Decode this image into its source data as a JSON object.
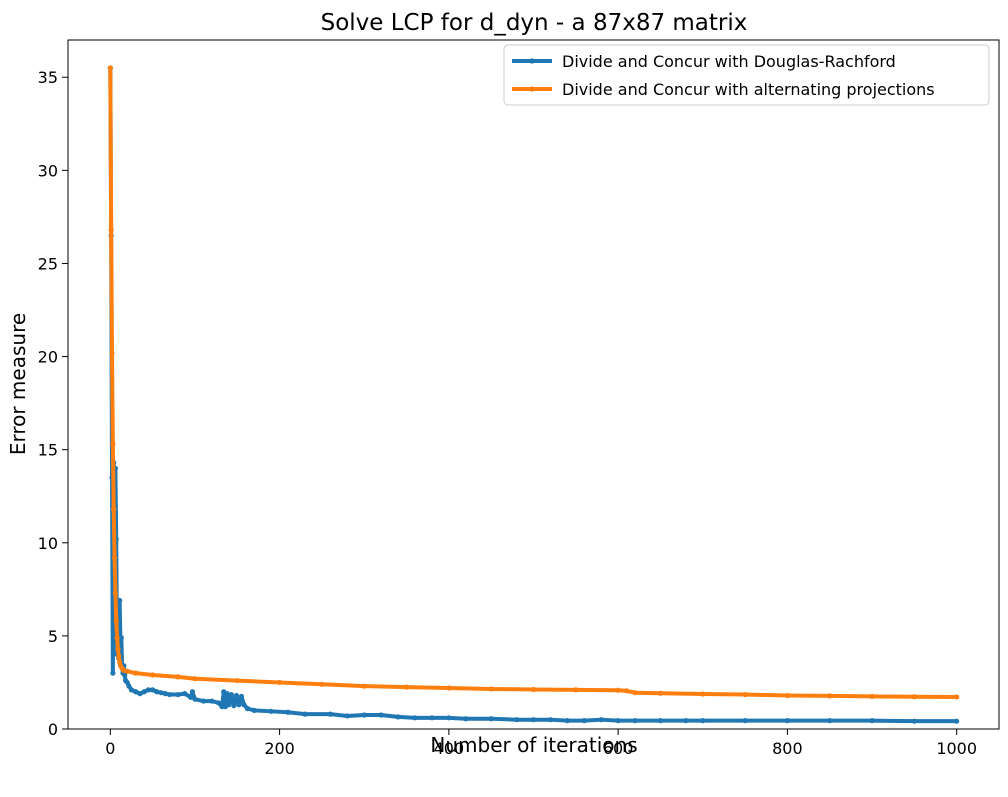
{
  "chart_data": {
    "type": "line",
    "title": "Solve LCP for d_dyn - a 87x87 matrix",
    "xlabel": "Number of iterations",
    "ylabel": "Error measure",
    "xlim": [
      -50,
      1050
    ],
    "ylim": [
      0,
      37
    ],
    "xticks": [
      0,
      200,
      400,
      600,
      800,
      1000
    ],
    "yticks": [
      0,
      5,
      10,
      15,
      20,
      25,
      30,
      35
    ],
    "grid": false,
    "legend_position": "top-right",
    "series": [
      {
        "name": "Divide and Concur with Douglas-Rachford",
        "color": "#1f77b4",
        "points": [
          [
            0,
            35.5
          ],
          [
            1,
            26.5
          ],
          [
            2,
            13.5
          ],
          [
            3,
            3.0
          ],
          [
            4,
            14.3
          ],
          [
            5,
            7.0
          ],
          [
            6,
            14.0
          ],
          [
            7,
            10.2
          ],
          [
            8,
            4.0
          ],
          [
            9,
            6.8
          ],
          [
            10,
            3.8
          ],
          [
            11,
            6.9
          ],
          [
            12,
            4.6
          ],
          [
            13,
            4.9
          ],
          [
            14,
            3.3
          ],
          [
            15,
            3.0
          ],
          [
            16,
            3.4
          ],
          [
            17,
            2.9
          ],
          [
            18,
            2.6
          ],
          [
            20,
            2.5
          ],
          [
            22,
            2.3
          ],
          [
            25,
            2.1
          ],
          [
            30,
            2.0
          ],
          [
            35,
            1.9
          ],
          [
            40,
            2.0
          ],
          [
            45,
            2.1
          ],
          [
            50,
            2.1
          ],
          [
            55,
            2.0
          ],
          [
            60,
            1.95
          ],
          [
            65,
            1.9
          ],
          [
            70,
            1.85
          ],
          [
            80,
            1.85
          ],
          [
            88,
            1.9
          ],
          [
            95,
            1.7
          ],
          [
            97,
            2.0
          ],
          [
            100,
            1.6
          ],
          [
            110,
            1.5
          ],
          [
            120,
            1.5
          ],
          [
            128,
            1.4
          ],
          [
            132,
            1.2
          ],
          [
            134,
            2.0
          ],
          [
            136,
            1.2
          ],
          [
            138,
            1.9
          ],
          [
            140,
            1.3
          ],
          [
            143,
            1.85
          ],
          [
            146,
            1.25
          ],
          [
            149,
            1.8
          ],
          [
            152,
            1.3
          ],
          [
            155,
            1.75
          ],
          [
            158,
            1.3
          ],
          [
            162,
            1.1
          ],
          [
            170,
            1.0
          ],
          [
            190,
            0.95
          ],
          [
            210,
            0.9
          ],
          [
            230,
            0.8
          ],
          [
            260,
            0.8
          ],
          [
            280,
            0.7
          ],
          [
            300,
            0.75
          ],
          [
            320,
            0.75
          ],
          [
            340,
            0.65
          ],
          [
            360,
            0.6
          ],
          [
            380,
            0.6
          ],
          [
            400,
            0.6
          ],
          [
            420,
            0.55
          ],
          [
            450,
            0.55
          ],
          [
            480,
            0.5
          ],
          [
            500,
            0.5
          ],
          [
            520,
            0.5
          ],
          [
            540,
            0.45
          ],
          [
            560,
            0.45
          ],
          [
            580,
            0.5
          ],
          [
            600,
            0.45
          ],
          [
            620,
            0.45
          ],
          [
            650,
            0.45
          ],
          [
            680,
            0.45
          ],
          [
            700,
            0.45
          ],
          [
            750,
            0.45
          ],
          [
            800,
            0.45
          ],
          [
            850,
            0.45
          ],
          [
            900,
            0.45
          ],
          [
            950,
            0.42
          ],
          [
            1000,
            0.42
          ]
        ]
      },
      {
        "name": "Divide and Concur with alternating projections",
        "color": "#ff7f0e",
        "points": [
          [
            0,
            35.5
          ],
          [
            1,
            26.8
          ],
          [
            2,
            20.2
          ],
          [
            3,
            15.3
          ],
          [
            4,
            11.8
          ],
          [
            5,
            9.2
          ],
          [
            6,
            7.3
          ],
          [
            7,
            5.8
          ],
          [
            8,
            4.9
          ],
          [
            9,
            4.3
          ],
          [
            10,
            3.9
          ],
          [
            11,
            3.6
          ],
          [
            12,
            3.4
          ],
          [
            14,
            3.25
          ],
          [
            16,
            3.15
          ],
          [
            20,
            3.1
          ],
          [
            30,
            3.0
          ],
          [
            50,
            2.9
          ],
          [
            80,
            2.8
          ],
          [
            100,
            2.7
          ],
          [
            150,
            2.6
          ],
          [
            200,
            2.5
          ],
          [
            250,
            2.4
          ],
          [
            300,
            2.3
          ],
          [
            350,
            2.25
          ],
          [
            400,
            2.2
          ],
          [
            450,
            2.15
          ],
          [
            500,
            2.12
          ],
          [
            550,
            2.1
          ],
          [
            600,
            2.08
          ],
          [
            610,
            2.05
          ],
          [
            620,
            1.95
          ],
          [
            650,
            1.92
          ],
          [
            700,
            1.88
          ],
          [
            750,
            1.85
          ],
          [
            800,
            1.8
          ],
          [
            850,
            1.78
          ],
          [
            900,
            1.75
          ],
          [
            950,
            1.73
          ],
          [
            1000,
            1.72
          ]
        ]
      }
    ]
  }
}
